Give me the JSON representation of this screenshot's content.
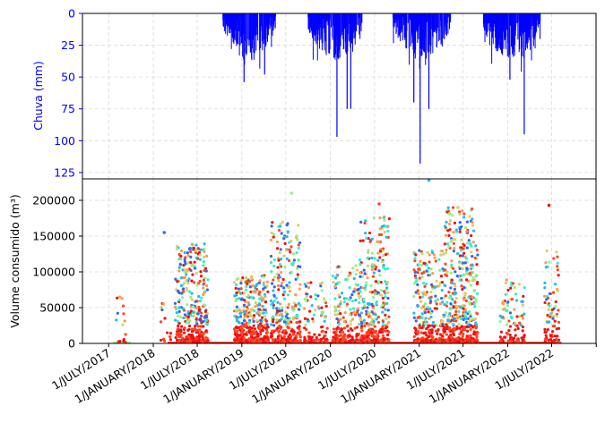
{
  "chart_data": [
    {
      "type": "bar",
      "title": "",
      "ylabel": "Chuva (mm)",
      "ylim": [
        0,
        130
      ],
      "y_inverted": true,
      "yticks": [
        0,
        25,
        50,
        75,
        100,
        125
      ],
      "grid": true,
      "color": "#0000ff",
      "x_domain": [
        "2017-03-15",
        "2022-12-31"
      ],
      "rainy_seasons": [
        {
          "start": "2018-10-15",
          "end": "2019-05-20"
        },
        {
          "start": "2019-10-01",
          "end": "2020-05-10"
        },
        {
          "start": "2020-09-15",
          "end": "2021-05-10"
        },
        {
          "start": "2021-09-20",
          "end": "2022-05-15"
        }
      ],
      "peaks": [
        {
          "date": "2019-01-10",
          "value": 54
        },
        {
          "date": "2019-04-05",
          "value": 48
        },
        {
          "date": "2020-01-28",
          "value": 97
        },
        {
          "date": "2020-03-10",
          "value": 75
        },
        {
          "date": "2020-03-25",
          "value": 75
        },
        {
          "date": "2020-12-10",
          "value": 70
        },
        {
          "date": "2021-01-05",
          "value": 118
        },
        {
          "date": "2021-02-10",
          "value": 75
        },
        {
          "date": "2022-01-10",
          "value": 52
        },
        {
          "date": "2022-03-10",
          "value": 95
        }
      ]
    },
    {
      "type": "scatter",
      "title": "",
      "ylabel": "Volume consumido (m³)",
      "ylim": [
        0,
        230000
      ],
      "yticks": [
        0,
        50000,
        100000,
        150000,
        200000
      ],
      "grid": true,
      "xticks": [
        "1/JULY/2017",
        "1/JANUARY/2018",
        "1/JULY/2018",
        "1/JANUARY/2019",
        "1/JULY/2019",
        "1/JANUARY/2020",
        "1/JULY/2020",
        "1/JANUARY/2021",
        "1/JULY/2021",
        "1/JANUARY/2022",
        "1/JULY/2022"
      ],
      "xtick_dates": [
        "2017-07-01",
        "2018-01-01",
        "2018-07-01",
        "2019-01-01",
        "2019-07-01",
        "2020-01-01",
        "2020-07-01",
        "2021-01-01",
        "2021-07-01",
        "2022-01-01",
        "2022-07-01",
        "2023-01-01"
      ],
      "x_domain": [
        "2017-03-15",
        "2022-12-31"
      ],
      "colormap": [
        "#3366ee",
        "#22bbee",
        "#33eecc",
        "#99ee88",
        "#ddcc66",
        "#ff9955",
        "#ff4422",
        "#ee1111"
      ],
      "clusters": [
        {
          "start": "2017-08-01",
          "end": "2017-09-10",
          "peak": 70000,
          "density": 4
        },
        {
          "start": "2018-02-01",
          "end": "2018-03-20",
          "peak": 60000,
          "density": 3
        },
        {
          "start": "2018-04-01",
          "end": "2018-08-15",
          "peak": 140000,
          "density": 28
        },
        {
          "start": "2018-12-01",
          "end": "2019-04-20",
          "peak": 95000,
          "density": 30
        },
        {
          "start": "2019-05-01",
          "end": "2019-08-31",
          "peak": 170000,
          "density": 24
        },
        {
          "start": "2019-09-15",
          "end": "2019-12-20",
          "peak": 90000,
          "density": 10
        },
        {
          "start": "2020-01-10",
          "end": "2020-04-30",
          "peak": 110000,
          "density": 18
        },
        {
          "start": "2020-05-01",
          "end": "2020-08-31",
          "peak": 180000,
          "density": 26
        },
        {
          "start": "2020-12-10",
          "end": "2021-04-15",
          "peak": 130000,
          "density": 22
        },
        {
          "start": "2021-04-15",
          "end": "2021-08-31",
          "peak": 190000,
          "density": 34
        },
        {
          "start": "2021-12-01",
          "end": "2022-03-15",
          "peak": 90000,
          "density": 10
        },
        {
          "start": "2022-06-01",
          "end": "2022-07-31",
          "peak": 130000,
          "density": 14
        }
      ],
      "outliers": [
        {
          "date": "2018-02-15",
          "value": 155000
        },
        {
          "date": "2019-07-25",
          "value": 210000
        },
        {
          "date": "2020-07-20",
          "value": 195000
        },
        {
          "date": "2021-02-10",
          "value": 228000
        },
        {
          "date": "2021-06-10",
          "value": 190000
        },
        {
          "date": "2022-06-20",
          "value": 193000
        }
      ]
    }
  ]
}
